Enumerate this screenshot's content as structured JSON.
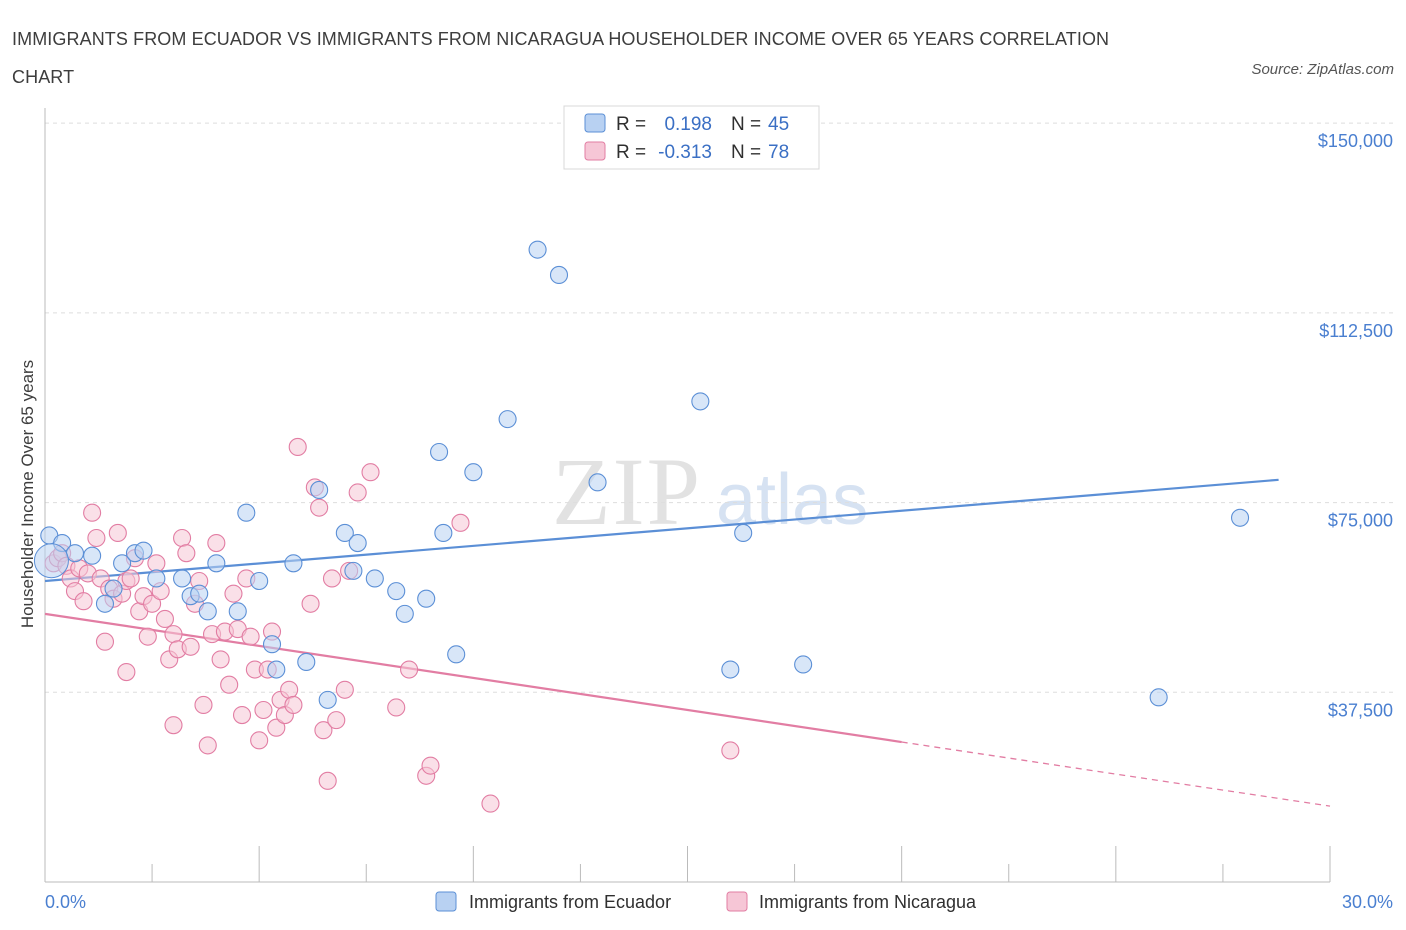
{
  "title": "IMMIGRANTS FROM ECUADOR VS IMMIGRANTS FROM NICARAGUA HOUSEHOLDER INCOME OVER 65 YEARS CORRELATION CHART",
  "source": "Source: ZipAtlas.com",
  "watermark": {
    "zip": "ZIP",
    "atlas": "atlas"
  },
  "chart_data": {
    "type": "scatter",
    "title": "IMMIGRANTS FROM ECUADOR VS IMMIGRANTS FROM NICARAGUA HOUSEHOLDER INCOME OVER 65 YEARS CORRELATION CHART",
    "xlabel": "",
    "ylabel": "Householder Income Over 65 years",
    "xlim": [
      0,
      30
    ],
    "ylim": [
      0,
      153000
    ],
    "x_tick_labels": [
      {
        "value": 0,
        "label": "0.0%"
      },
      {
        "value": 30,
        "label": "30.0%"
      }
    ],
    "y_ticks": [
      {
        "value": 37500,
        "label": "$37,500"
      },
      {
        "value": 75000,
        "label": "$75,000"
      },
      {
        "value": 112500,
        "label": "$112,500"
      },
      {
        "value": 150000,
        "label": "$150,000"
      }
    ],
    "stats": [
      {
        "r_label": "R =",
        "r": "0.198",
        "n_label": "N =",
        "n": "45"
      },
      {
        "r_label": "R =",
        "r": "-0.313",
        "n_label": "N =",
        "n": "78"
      }
    ],
    "series": [
      {
        "name": "Immigrants from Ecuador",
        "color": "#5b8fd6",
        "fill": "#b8d1f2",
        "trend": {
          "x0": 0,
          "y0": 59500,
          "x1": 28.8,
          "y1": 79500,
          "solid_to": 28.8
        },
        "points": [
          [
            0.1,
            68500
          ],
          [
            0.4,
            67000
          ],
          [
            0.7,
            65000
          ],
          [
            1.1,
            64500
          ],
          [
            1.4,
            55000
          ],
          [
            1.6,
            58000
          ],
          [
            1.8,
            63000
          ],
          [
            2.1,
            65000
          ],
          [
            2.3,
            65500
          ],
          [
            2.6,
            60000
          ],
          [
            3.2,
            60000
          ],
          [
            3.4,
            56500
          ],
          [
            3.6,
            57000
          ],
          [
            3.8,
            53500
          ],
          [
            4.0,
            63000
          ],
          [
            4.5,
            53500
          ],
          [
            4.7,
            73000
          ],
          [
            5.0,
            59500
          ],
          [
            5.3,
            47000
          ],
          [
            5.4,
            42000
          ],
          [
            5.8,
            63000
          ],
          [
            6.1,
            43500
          ],
          [
            6.4,
            77500
          ],
          [
            6.6,
            36000
          ],
          [
            7.0,
            69000
          ],
          [
            7.2,
            61500
          ],
          [
            7.3,
            67000
          ],
          [
            7.7,
            60000
          ],
          [
            8.2,
            57500
          ],
          [
            8.4,
            53000
          ],
          [
            8.9,
            56000
          ],
          [
            9.2,
            85000
          ],
          [
            9.3,
            69000
          ],
          [
            9.6,
            45000
          ],
          [
            10.0,
            81000
          ],
          [
            10.8,
            91500
          ],
          [
            11.5,
            125000
          ],
          [
            12.0,
            120000
          ],
          [
            12.9,
            79000
          ],
          [
            15.3,
            95000
          ],
          [
            16.0,
            42000
          ],
          [
            16.3,
            69000
          ],
          [
            17.7,
            43000
          ],
          [
            26.0,
            36500
          ],
          [
            27.9,
            72000
          ]
        ]
      },
      {
        "name": "Immigrants from Nicaragua",
        "color": "#e27da3",
        "fill": "#f6c6d6",
        "trend": {
          "x0": 0,
          "y0": 53000,
          "x1": 30,
          "y1": 15000,
          "solid_to": 20
        },
        "points": [
          [
            0.2,
            63000
          ],
          [
            0.3,
            64000
          ],
          [
            0.4,
            65000
          ],
          [
            0.5,
            62500
          ],
          [
            0.6,
            60000
          ],
          [
            0.7,
            57500
          ],
          [
            0.8,
            62000
          ],
          [
            0.9,
            55500
          ],
          [
            1.0,
            61000
          ],
          [
            1.1,
            73000
          ],
          [
            1.2,
            68000
          ],
          [
            1.3,
            60000
          ],
          [
            1.4,
            47500
          ],
          [
            1.5,
            58000
          ],
          [
            1.6,
            56000
          ],
          [
            1.7,
            69000
          ],
          [
            1.8,
            57000
          ],
          [
            1.9,
            59500
          ],
          [
            1.9,
            41500
          ],
          [
            2.0,
            60000
          ],
          [
            2.1,
            64000
          ],
          [
            2.2,
            53500
          ],
          [
            2.3,
            56500
          ],
          [
            2.4,
            48500
          ],
          [
            2.5,
            55000
          ],
          [
            2.6,
            63000
          ],
          [
            2.7,
            57500
          ],
          [
            2.8,
            52000
          ],
          [
            2.9,
            44000
          ],
          [
            3.0,
            31000
          ],
          [
            3.0,
            49000
          ],
          [
            3.1,
            46000
          ],
          [
            3.2,
            68000
          ],
          [
            3.3,
            65000
          ],
          [
            3.4,
            46500
          ],
          [
            3.5,
            55000
          ],
          [
            3.6,
            59500
          ],
          [
            3.7,
            35000
          ],
          [
            3.8,
            27000
          ],
          [
            3.9,
            49000
          ],
          [
            4.0,
            67000
          ],
          [
            4.1,
            44000
          ],
          [
            4.2,
            49500
          ],
          [
            4.3,
            39000
          ],
          [
            4.4,
            57000
          ],
          [
            4.5,
            50000
          ],
          [
            4.6,
            33000
          ],
          [
            4.7,
            60000
          ],
          [
            4.8,
            48500
          ],
          [
            4.9,
            42000
          ],
          [
            5.0,
            28000
          ],
          [
            5.1,
            34000
          ],
          [
            5.2,
            42000
          ],
          [
            5.3,
            49500
          ],
          [
            5.4,
            30500
          ],
          [
            5.5,
            36000
          ],
          [
            5.6,
            33000
          ],
          [
            5.7,
            38000
          ],
          [
            5.8,
            35000
          ],
          [
            5.9,
            86000
          ],
          [
            6.2,
            55000
          ],
          [
            6.3,
            78000
          ],
          [
            6.4,
            74000
          ],
          [
            6.5,
            30000
          ],
          [
            6.6,
            20000
          ],
          [
            6.7,
            60000
          ],
          [
            6.8,
            32000
          ],
          [
            7.0,
            38000
          ],
          [
            7.1,
            61500
          ],
          [
            7.3,
            77000
          ],
          [
            7.6,
            81000
          ],
          [
            8.2,
            34500
          ],
          [
            8.5,
            42000
          ],
          [
            8.9,
            21000
          ],
          [
            9.0,
            23000
          ],
          [
            9.7,
            71000
          ],
          [
            10.4,
            15500
          ],
          [
            16.0,
            26000
          ]
        ]
      }
    ],
    "legend": [
      "Immigrants from Ecuador",
      "Immigrants from Nicaragua"
    ]
  }
}
